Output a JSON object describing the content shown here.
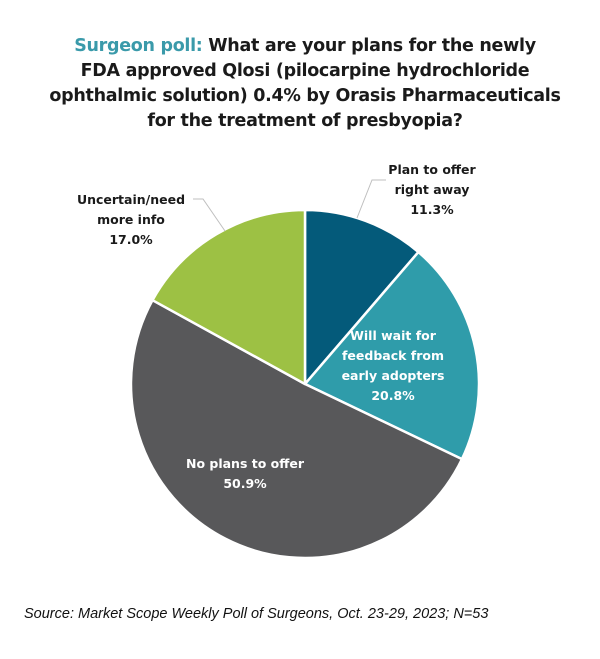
{
  "chart_data": {
    "type": "pie",
    "title_lead": "Surgeon poll:",
    "title_lines": [
      " What are your plans for the newly",
      "FDA approved Qlosi (pilocarpine hydrochloride",
      "ophthalmic solution) 0.4% by Orasis Pharmaceuticals",
      "for the treatment of presbyopia?"
    ],
    "start_angle_deg": 0,
    "direction": "clockwise",
    "slices": [
      {
        "label": "Plan to offer right away",
        "label_lines": [
          "Plan to offer",
          "right away",
          "11.3%"
        ],
        "value": 11.3,
        "value_label": "11.3%",
        "color": "#045a7a",
        "label_color": "#1a1a1a",
        "label_position": "outside"
      },
      {
        "label": "Will wait for feedback from early adopters",
        "label_lines": [
          "Will wait for",
          "feedback from",
          "early adopters",
          "20.8%"
        ],
        "value": 20.8,
        "value_label": "20.8%",
        "color": "#2f9caa",
        "label_color": "#ffffff",
        "label_position": "inside"
      },
      {
        "label": "No plans to offer",
        "label_lines": [
          "No plans to offer",
          "50.9%"
        ],
        "value": 50.9,
        "value_label": "50.9%",
        "color": "#58585a",
        "label_color": "#ffffff",
        "label_position": "inside"
      },
      {
        "label": "Uncertain/need more info",
        "label_lines": [
          "Uncertain/need",
          "more info",
          "17.0%"
        ],
        "value": 17.0,
        "value_label": "17.0%",
        "color": "#9dc144",
        "label_color": "#1a1a1a",
        "label_position": "outside"
      }
    ],
    "legend": "none"
  },
  "source": "Source: Market Scope Weekly Poll of Surgeons, Oct. 23-29, 2023; N=53"
}
